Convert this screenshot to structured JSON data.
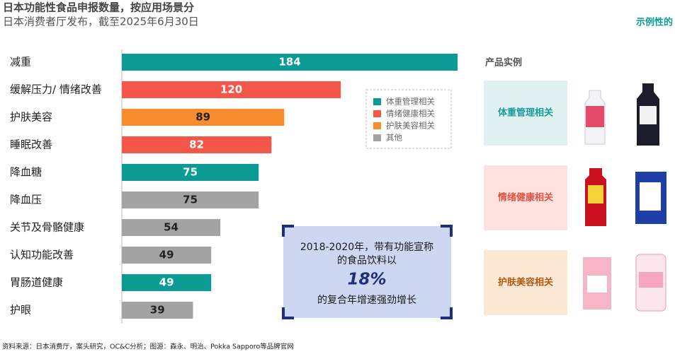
{
  "chart_data": {
    "type": "bar",
    "title": "日本功能性食品申报数量，按应用场景分",
    "subtitle": "日本消费者厅发布，截至2025年6月30日",
    "tag": "示例性的",
    "categories": [
      "减重",
      "缓解压力/ 情绪改善",
      "护肤美容",
      "睡眠改善",
      "降血糖",
      "降血压",
      "关节及骨骼健康",
      "认知功能改善",
      "胃肠道健康",
      "护眼"
    ],
    "values": [
      184,
      120,
      89,
      82,
      75,
      75,
      54,
      49,
      49,
      39
    ],
    "colors": [
      "#0c9a95",
      "#f4574a",
      "#f98c2c",
      "#f4574a",
      "#0c9a95",
      "#a3a3a3",
      "#a3a3a3",
      "#a3a3a3",
      "#0c9a95",
      "#a3a3a3"
    ],
    "legend": [
      {
        "name": "体重管理相关",
        "color": "#0c9a95"
      },
      {
        "name": "情绪健康相关",
        "color": "#f4574a"
      },
      {
        "name": "护肤美容相关",
        "color": "#f98c2c"
      },
      {
        "name": "其他",
        "color": "#a3a3a3"
      }
    ],
    "callout": {
      "lines": [
        "2018-2020年，带有功能宣称",
        "的食品饮料以"
      ],
      "highlight": "18%",
      "tail": "的复合年增速强劲增长"
    },
    "examples": {
      "title": "产品实例",
      "panels": [
        "体重管理相关",
        "情绪健康相关",
        "护肤美容相关"
      ]
    },
    "source": "资料来源：日本消费厅，案头研究，OC&C分析；图源：森永、明治、Pokka Sapporo等品牌官网"
  }
}
